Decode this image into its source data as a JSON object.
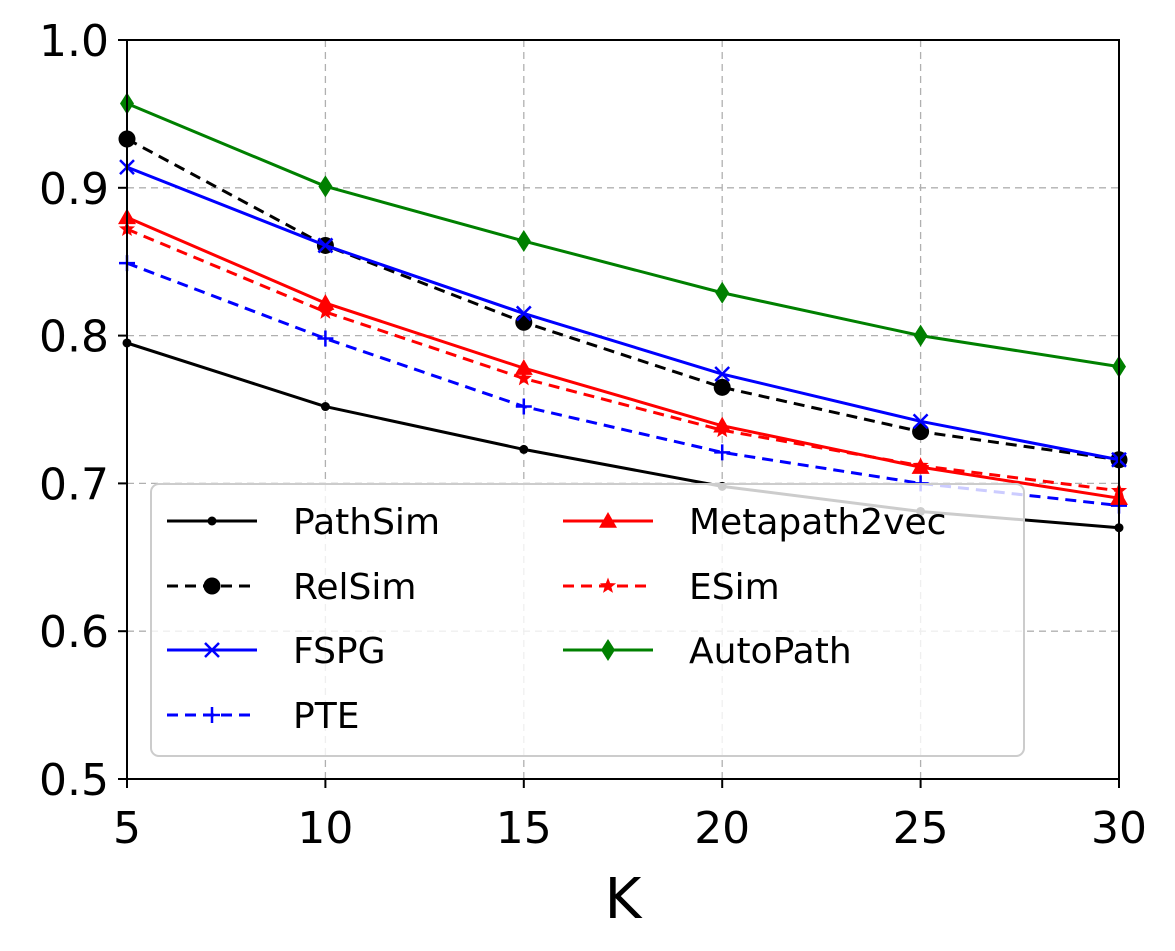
{
  "chart_data": {
    "type": "line",
    "title": "",
    "xlabel": "K",
    "ylabel": "",
    "x": [
      5,
      10,
      15,
      20,
      25,
      30
    ],
    "xlim": [
      5,
      30
    ],
    "ylim": [
      0.5,
      1.0
    ],
    "xticks": [
      "5",
      "10",
      "15",
      "20",
      "25",
      "30"
    ],
    "yticks": [
      "0.5",
      "0.6",
      "0.7",
      "0.8",
      "0.9",
      "1.0"
    ],
    "grid": true,
    "legend": {
      "placement": "lower-left",
      "columns": 2
    },
    "series": [
      {
        "name": "PathSim",
        "color": "#000000",
        "dash": "solid",
        "marker": "point",
        "values": [
          0.795,
          0.752,
          0.723,
          0.698,
          0.681,
          0.67
        ]
      },
      {
        "name": "RelSim",
        "color": "#000000",
        "dash": "dashed",
        "marker": "circle",
        "values": [
          0.933,
          0.861,
          0.809,
          0.765,
          0.735,
          0.716
        ]
      },
      {
        "name": "FSPG",
        "color": "#0000ff",
        "dash": "solid",
        "marker": "x",
        "values": [
          0.914,
          0.861,
          0.815,
          0.774,
          0.742,
          0.716
        ]
      },
      {
        "name": "PTE",
        "color": "#0000ff",
        "dash": "dashed",
        "marker": "plus",
        "values": [
          0.849,
          0.798,
          0.752,
          0.721,
          0.7,
          0.685
        ]
      },
      {
        "name": "Metapath2vec",
        "color": "#ff0000",
        "dash": "solid",
        "marker": "triangle",
        "values": [
          0.88,
          0.822,
          0.778,
          0.739,
          0.711,
          0.69
        ]
      },
      {
        "name": "ESim",
        "color": "#ff0000",
        "dash": "dashed",
        "marker": "star",
        "values": [
          0.872,
          0.816,
          0.771,
          0.736,
          0.712,
          0.695
        ]
      },
      {
        "name": "AutoPath",
        "color": "#008000",
        "dash": "solid",
        "marker": "diamond",
        "values": [
          0.957,
          0.901,
          0.864,
          0.829,
          0.8,
          0.779
        ]
      }
    ]
  }
}
